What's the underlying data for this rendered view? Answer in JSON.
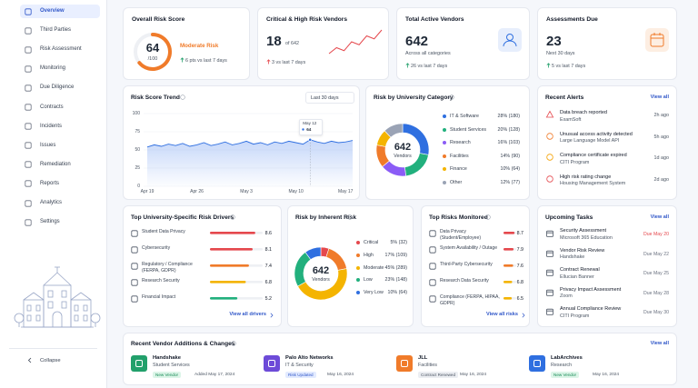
{
  "sidebar": {
    "items": [
      "Overview",
      "Third Parties",
      "Risk Assessment",
      "Monitoring",
      "Due Diligence",
      "Contracts",
      "Incidents",
      "Issues",
      "Remediation",
      "Reports",
      "Analytics",
      "Settings"
    ],
    "collapse": "Collapse"
  },
  "kpis": [
    {
      "title": "Overall Risk Score",
      "value": 64,
      "scale": {
        "value": 100,
        "label": "/100"
      },
      "status": "Moderate Risk",
      "delta": "6 pts vs last 7 days"
    },
    {
      "title": "Critical & High Risk Vendors",
      "value": 18,
      "of": "of 642",
      "delta": "3 vs last 7 days",
      "sparkline": [
        10,
        12,
        11,
        14,
        13,
        16,
        15,
        18
      ]
    },
    {
      "title": "Total Active Vendors",
      "value": 642,
      "sub": "Across all categories",
      "delta": "26 vs last 7 days"
    },
    {
      "title": "Assessments Due",
      "value": 23,
      "sub": "Next 30 days",
      "delta": "5 vs last 7 days"
    }
  ],
  "trend": {
    "title": "Risk Score Trend",
    "range": "Last 30 days",
    "ylim": [
      0,
      100
    ],
    "yticks": [
      0,
      25,
      50,
      75,
      100
    ],
    "x_labels": [
      "Apr 19",
      "Apr 26",
      "May 3",
      "May 10",
      "May 17"
    ],
    "values": [
      54,
      57,
      55,
      58,
      56,
      59,
      55,
      57,
      60,
      56,
      58,
      61,
      57,
      59,
      62,
      58,
      60,
      57,
      61,
      59,
      62,
      60,
      58,
      64,
      61,
      59,
      62,
      60,
      61,
      63
    ],
    "tooltip": {
      "date": "May 12",
      "value": 64
    }
  },
  "category": {
    "title": "Risk by University Category",
    "total": 642,
    "total_label": "Vendors",
    "items": [
      {
        "name": "IT & Software",
        "value": 28,
        "label": "28% (180)",
        "color": "#2f6fe0"
      },
      {
        "name": "Student Services",
        "value": 20,
        "label": "20% (128)",
        "color": "#22b07d"
      },
      {
        "name": "Research",
        "value": 16,
        "label": "16% (103)",
        "color": "#8b5cf6"
      },
      {
        "name": "Facilities",
        "value": 14,
        "label": "14% (90)",
        "color": "#f07b2a"
      },
      {
        "name": "Finance",
        "value": 10,
        "label": "10% (64)",
        "color": "#f4b400"
      },
      {
        "name": "Other",
        "value": 12,
        "label": "12% (77)",
        "color": "#9aa3b5"
      }
    ]
  },
  "alerts": {
    "title": "Recent Alerts",
    "view_all": "View all",
    "items": [
      {
        "title": "Data breach reported",
        "sub": "ExamSoft",
        "time": "2h ago",
        "color": "#e5484d"
      },
      {
        "title": "Unusual access activity detected",
        "sub": "Large Language Model API",
        "time": "5h ago",
        "color": "#f07b2a"
      },
      {
        "title": "Compliance certificate expired",
        "sub": "CITI Program",
        "time": "1d ago",
        "color": "#f4a000"
      },
      {
        "title": "High risk rating change",
        "sub": "Housing Management System",
        "time": "2d ago",
        "color": "#e5484d"
      }
    ]
  },
  "drivers": {
    "title": "Top University-Specific Risk Drivers",
    "xlim": [
      0,
      10
    ],
    "view_all": "View all drivers",
    "items": [
      {
        "name": "Student Data Privacy",
        "value": 8.6,
        "color": "#e5484d"
      },
      {
        "name": "Cybersecurity",
        "value": 8.1,
        "color": "#e5484d"
      },
      {
        "name": "Regulatory / Compliance (FERPA, GDPR)",
        "value": 7.4,
        "color": "#f07b2a"
      },
      {
        "name": "Research Security",
        "value": 6.8,
        "color": "#f4b400"
      },
      {
        "name": "Financial Impact",
        "value": 5.2,
        "color": "#22b07d"
      }
    ]
  },
  "inherent": {
    "title": "Risk by Inherent Risk",
    "total": 642,
    "total_label": "Vendors",
    "items": [
      {
        "name": "Critical",
        "value": 5,
        "label": "5% (32)",
        "color": "#e5484d"
      },
      {
        "name": "High",
        "value": 17,
        "label": "17% (109)",
        "color": "#f07b2a"
      },
      {
        "name": "Moderate",
        "value": 45,
        "label": "45% (289)",
        "color": "#f4b400"
      },
      {
        "name": "Low",
        "value": 23,
        "label": "23% (148)",
        "color": "#22b07d"
      },
      {
        "name": "Very Low",
        "value": 10,
        "label": "10% (64)",
        "color": "#2f6fe0"
      }
    ]
  },
  "top_risks": {
    "title": "Top Risks Monitored",
    "xlim": [
      0,
      10
    ],
    "view_all": "View all risks",
    "items": [
      {
        "name": "Data Privacy (Student/Employee)",
        "value": 8.7,
        "color": "#e5484d"
      },
      {
        "name": "System Availability / Outage",
        "value": 7.9,
        "color": "#e5484d"
      },
      {
        "name": "Third-Party Cybersecurity",
        "value": 7.6,
        "color": "#f07b2a"
      },
      {
        "name": "Research Data Security",
        "value": 6.8,
        "color": "#f4b400"
      },
      {
        "name": "Compliance (FERPA, HIPAA, GDPR)",
        "value": 6.5,
        "color": "#f4b400"
      }
    ]
  },
  "tasks": {
    "title": "Upcoming Tasks",
    "view_all": "View all",
    "items": [
      {
        "title": "Security Assessment",
        "sub": "Microsoft 365 Education",
        "due": "Due May 20",
        "color": "#e5484d"
      },
      {
        "title": "Vendor Risk Review",
        "sub": "Handshake",
        "due": "Due May 22",
        "color": "#6b7280"
      },
      {
        "title": "Contract Renewal",
        "sub": "Ellucian Banner",
        "due": "Due May 25",
        "color": "#6b7280"
      },
      {
        "title": "Privacy Impact Assessment",
        "sub": "Zoom",
        "due": "Due May 28",
        "color": "#6b7280"
      },
      {
        "title": "Annual Compliance Review",
        "sub": "CITI Program",
        "due": "Due May 30",
        "color": "#6b7280"
      }
    ]
  },
  "vendors": {
    "title": "Recent Vendor Additions & Changes",
    "view_all": "View all",
    "items": [
      {
        "name": "Handshake",
        "category": "Student Services",
        "badge": "New Vendor",
        "date": "Added May 17, 2024",
        "color": "#22a06b",
        "badge_bg": "#dcf5e8",
        "badge_fg": "#178a55"
      },
      {
        "name": "Palo Alto Networks",
        "category": "IT & Security",
        "badge": "Risk Updated",
        "date": "May 16, 2024",
        "color": "#6d4bd8",
        "badge_bg": "#e3ebff",
        "badge_fg": "#2f56c8"
      },
      {
        "name": "JLL",
        "category": "Facilities",
        "badge": "Contract Renewed",
        "date": "May 16, 2024",
        "color": "#f07b2a",
        "badge_bg": "#eceef2",
        "badge_fg": "#4b5563"
      },
      {
        "name": "LabArchives",
        "category": "Research",
        "badge": "New Vendor",
        "date": "May 16, 2024",
        "color": "#2f6fe0",
        "badge_bg": "#dcf5e8",
        "badge_fg": "#178a55"
      }
    ]
  }
}
